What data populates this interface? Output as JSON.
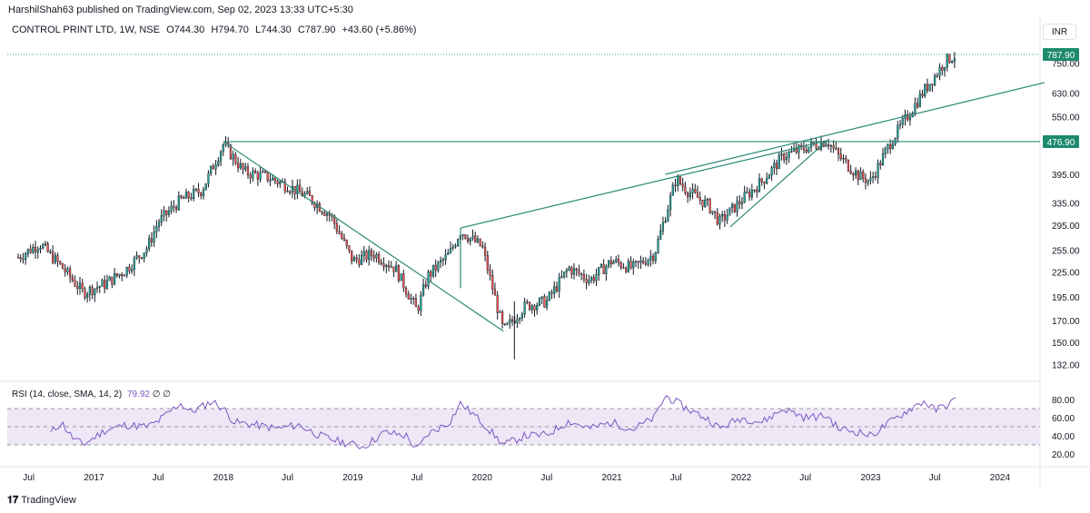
{
  "header": {
    "published_text": "HarshilShah63 published on TradingView.com, Sep 02, 2023 13:33 UTC+5:30"
  },
  "legend": {
    "symbol": "CONTROL PRINT LTD, 1W, NSE",
    "open": "O744.30",
    "high": "H794.70",
    "low": "L744.30",
    "close": "C787.90",
    "change": "+43.60 (+5.86%)"
  },
  "currency_button": "INR",
  "rsi_legend": {
    "label": "RSI (14, close, SMA, 14, 2)",
    "value": "79.92",
    "extra1": "∅",
    "extra2": "∅"
  },
  "footer": {
    "brand": "TradingView"
  },
  "colors": {
    "up": "#26a69a",
    "down": "#ef5350",
    "candle": "#131722",
    "trendline": "#2b8a75",
    "price_tag": "#1e8a6e",
    "rsi_line": "#7e57c2",
    "rsi_band": "#ede7f6"
  },
  "chart_data": {
    "type": "candlestick",
    "price_scale": "log",
    "ylim": [
      125,
      830
    ],
    "price_ticks": [
      "750.00",
      "630.00",
      "550.00",
      "476.90",
      "395.00",
      "335.00",
      "295.00",
      "255.00",
      "225.00",
      "195.00",
      "170.00",
      "150.00",
      "132.00"
    ],
    "x_ticks": [
      "Jul",
      "2017",
      "Jul",
      "2018",
      "Jul",
      "2019",
      "Jul",
      "2020",
      "Jul",
      "2021",
      "Jul",
      "2022",
      "Jul",
      "2023",
      "Jul",
      "2024"
    ],
    "last_price_label": "787.90",
    "level_label": "476.90",
    "weekly_closes_approx": [
      {
        "x": "2016-06",
        "y": 245
      },
      {
        "x": "2016-08",
        "y": 265
      },
      {
        "x": "2016-10",
        "y": 232
      },
      {
        "x": "2016-12",
        "y": 200
      },
      {
        "x": "2017-02",
        "y": 210
      },
      {
        "x": "2017-04",
        "y": 228
      },
      {
        "x": "2017-06",
        "y": 260
      },
      {
        "x": "2017-07",
        "y": 300
      },
      {
        "x": "2017-09",
        "y": 340
      },
      {
        "x": "2017-11",
        "y": 360
      },
      {
        "x": "2018-01",
        "y": 470
      },
      {
        "x": "2018-03",
        "y": 400
      },
      {
        "x": "2018-05",
        "y": 390
      },
      {
        "x": "2018-07",
        "y": 370
      },
      {
        "x": "2018-09",
        "y": 345
      },
      {
        "x": "2018-11",
        "y": 310
      },
      {
        "x": "2019-01",
        "y": 240
      },
      {
        "x": "2019-03",
        "y": 250
      },
      {
        "x": "2019-05",
        "y": 230
      },
      {
        "x": "2019-07",
        "y": 180
      },
      {
        "x": "2019-08",
        "y": 220
      },
      {
        "x": "2019-10",
        "y": 250
      },
      {
        "x": "2019-11",
        "y": 285
      },
      {
        "x": "2020-01",
        "y": 260
      },
      {
        "x": "2020-03",
        "y": 160
      },
      {
        "x": "2020-05",
        "y": 185
      },
      {
        "x": "2020-07",
        "y": 190
      },
      {
        "x": "2020-09",
        "y": 230
      },
      {
        "x": "2020-11",
        "y": 215
      },
      {
        "x": "2021-01",
        "y": 240
      },
      {
        "x": "2021-03",
        "y": 230
      },
      {
        "x": "2021-05",
        "y": 250
      },
      {
        "x": "2021-07",
        "y": 385
      },
      {
        "x": "2021-08",
        "y": 360
      },
      {
        "x": "2021-10",
        "y": 330
      },
      {
        "x": "2021-11",
        "y": 300
      },
      {
        "x": "2022-01",
        "y": 340
      },
      {
        "x": "2022-03",
        "y": 380
      },
      {
        "x": "2022-05",
        "y": 440
      },
      {
        "x": "2022-07",
        "y": 460
      },
      {
        "x": "2022-09",
        "y": 480
      },
      {
        "x": "2022-10",
        "y": 440
      },
      {
        "x": "2022-12",
        "y": 390
      },
      {
        "x": "2023-01",
        "y": 380
      },
      {
        "x": "2023-03",
        "y": 480
      },
      {
        "x": "2023-05",
        "y": 580
      },
      {
        "x": "2023-06",
        "y": 640
      },
      {
        "x": "2023-08",
        "y": 760
      },
      {
        "x": "2023-09",
        "y": 787.9
      }
    ],
    "rsi": {
      "name": "RSI (14, close, SMA, 14, 2)",
      "ylim": [
        15,
        88
      ],
      "ticks": [
        "80.00",
        "60.00",
        "40.00",
        "20.00"
      ],
      "band": [
        30,
        70
      ],
      "middle": 50,
      "last": 79.92,
      "values_approx": [
        {
          "x": "2016-09",
          "y": 43
        },
        {
          "x": "2016-10",
          "y": 55
        },
        {
          "x": "2016-11",
          "y": 38
        },
        {
          "x": "2016-12",
          "y": 30
        },
        {
          "x": "2017-02",
          "y": 46
        },
        {
          "x": "2017-04",
          "y": 52
        },
        {
          "x": "2017-06",
          "y": 50
        },
        {
          "x": "2017-07",
          "y": 56
        },
        {
          "x": "2017-09",
          "y": 76
        },
        {
          "x": "2017-10",
          "y": 66
        },
        {
          "x": "2017-12",
          "y": 78
        },
        {
          "x": "2018-01",
          "y": 70
        },
        {
          "x": "2018-02",
          "y": 55
        },
        {
          "x": "2018-04",
          "y": 52
        },
        {
          "x": "2018-06",
          "y": 48
        },
        {
          "x": "2018-08",
          "y": 52
        },
        {
          "x": "2018-10",
          "y": 40
        },
        {
          "x": "2018-12",
          "y": 33
        },
        {
          "x": "2019-02",
          "y": 28
        },
        {
          "x": "2019-04",
          "y": 44
        },
        {
          "x": "2019-06",
          "y": 40
        },
        {
          "x": "2019-07",
          "y": 24
        },
        {
          "x": "2019-08",
          "y": 42
        },
        {
          "x": "2019-10",
          "y": 55
        },
        {
          "x": "2019-11",
          "y": 76
        },
        {
          "x": "2020-01",
          "y": 55
        },
        {
          "x": "2020-03",
          "y": 30
        },
        {
          "x": "2020-05",
          "y": 40
        },
        {
          "x": "2020-07",
          "y": 41
        },
        {
          "x": "2020-09",
          "y": 56
        },
        {
          "x": "2020-11",
          "y": 48
        },
        {
          "x": "2021-01",
          "y": 55
        },
        {
          "x": "2021-03",
          "y": 47
        },
        {
          "x": "2021-05",
          "y": 60
        },
        {
          "x": "2021-06",
          "y": 84
        },
        {
          "x": "2021-08",
          "y": 70
        },
        {
          "x": "2021-10",
          "y": 58
        },
        {
          "x": "2021-11",
          "y": 48
        },
        {
          "x": "2022-01",
          "y": 60
        },
        {
          "x": "2022-03",
          "y": 55
        },
        {
          "x": "2022-05",
          "y": 70
        },
        {
          "x": "2022-07",
          "y": 60
        },
        {
          "x": "2022-09",
          "y": 62
        },
        {
          "x": "2022-10",
          "y": 48
        },
        {
          "x": "2022-12",
          "y": 44
        },
        {
          "x": "2023-01",
          "y": 40
        },
        {
          "x": "2023-03",
          "y": 56
        },
        {
          "x": "2023-05",
          "y": 72
        },
        {
          "x": "2023-06",
          "y": 78
        },
        {
          "x": "2023-07",
          "y": 68
        },
        {
          "x": "2023-08",
          "y": 74
        },
        {
          "x": "2023-09",
          "y": 79.92
        }
      ]
    }
  }
}
